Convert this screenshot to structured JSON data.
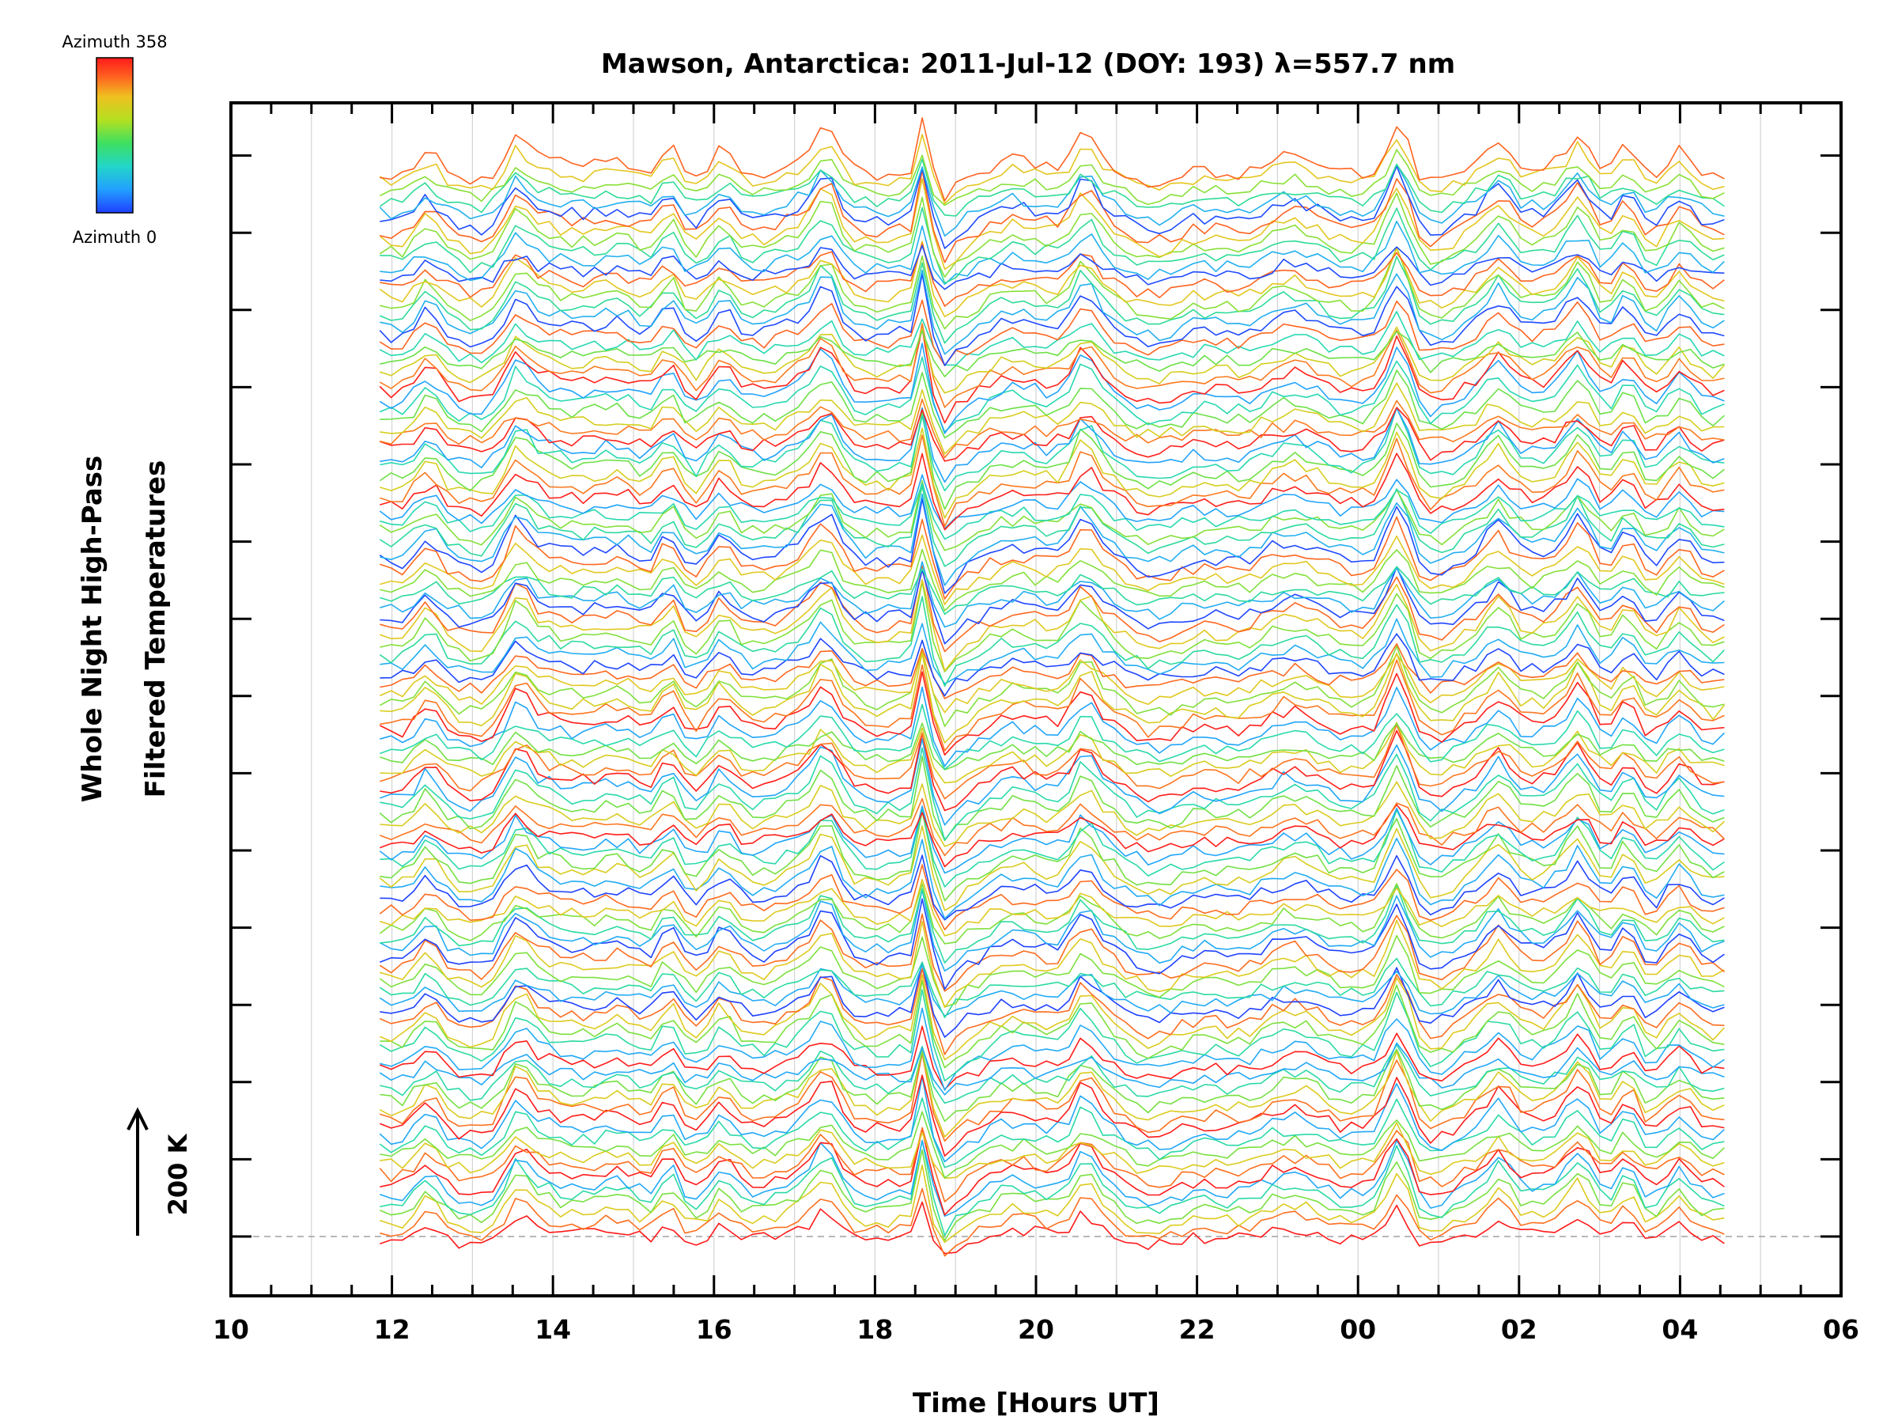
{
  "chart_data": {
    "type": "line",
    "title": "Mawson, Antarctica: 2011-Jul-12 (DOY: 193) λ=557.7 nm",
    "xlabel": "Time [Hours UT]",
    "ylabel_line1": "Whole Night High-Pass",
    "ylabel_line2": "Filtered Temperatures",
    "x_tick_labels": [
      "10",
      "12",
      "14",
      "16",
      "18",
      "20",
      "22",
      "00",
      "02",
      "04",
      "06"
    ],
    "xlim_hours": [
      10,
      30
    ],
    "data_start_hour": 11.85,
    "data_end_hour": 28.55,
    "sample_count": 120,
    "trace_count": 114,
    "y_scale_label": "200 K",
    "colorbar": {
      "top_label": "Azimuth  358",
      "bottom_label": "Azimuth  0",
      "azimuth_min": 0,
      "azimuth_max": 358,
      "colors": [
        "#1f3fff",
        "#22a0ff",
        "#22d6c8",
        "#3ee060",
        "#b4e020",
        "#f0c020",
        "#ff6020",
        "#ff1a1a"
      ]
    },
    "events_hours": [
      12.45,
      13.55,
      15.45,
      16.1,
      17.4,
      18.6,
      18.9,
      20.6,
      24.5,
      25.75,
      26.75,
      27.35,
      28.0
    ],
    "grid": "vertical-hourly",
    "baseline_dashed": true
  }
}
